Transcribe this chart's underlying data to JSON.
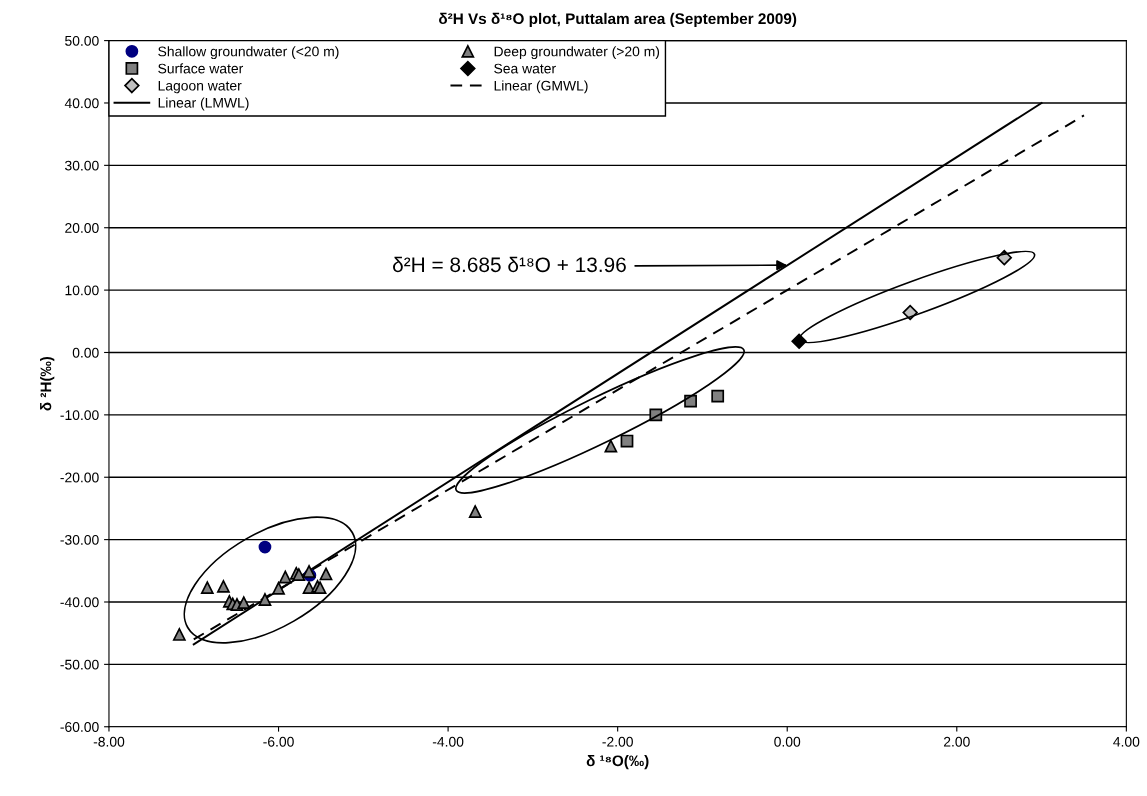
{
  "chart_data": {
    "type": "scatter",
    "title": "δ²H Vs δ¹⁸O plot, Puttalam area (September 2009)",
    "xlabel": "δ ¹⁸O(‰)",
    "ylabel": "δ ²H(‰)",
    "xlim": [
      -8,
      4
    ],
    "ylim": [
      -60,
      50
    ],
    "xticks": [
      {
        "value": -8,
        "label": "-8.00"
      },
      {
        "value": -6,
        "label": "-6.00"
      },
      {
        "value": -4,
        "label": "-4.00"
      },
      {
        "value": -2,
        "label": "-2.00"
      },
      {
        "value": 0,
        "label": "0.00"
      },
      {
        "value": 2,
        "label": "2.00"
      },
      {
        "value": 4,
        "label": "4.00"
      }
    ],
    "yticks": [
      {
        "value": -60,
        "label": "-60.00"
      },
      {
        "value": -50,
        "label": "-50.00"
      },
      {
        "value": -40,
        "label": "-40.00"
      },
      {
        "value": -30,
        "label": "-30.00"
      },
      {
        "value": -20,
        "label": "-20.00"
      },
      {
        "value": -10,
        "label": "-10.00"
      },
      {
        "value": 0,
        "label": "0.00"
      },
      {
        "value": 10,
        "label": "10.00"
      },
      {
        "value": 20,
        "label": "20.00"
      },
      {
        "value": 30,
        "label": "30.00"
      },
      {
        "value": 40,
        "label": "40.00"
      },
      {
        "value": 50,
        "label": "50.00"
      }
    ],
    "grid": "y",
    "legend": "top left",
    "series": [
      {
        "name": "Shallow groundwater (<20 m)",
        "marker": "circle",
        "color": "#000080",
        "x": [
          -6.16,
          -5.63
        ],
        "values": [
          -31.2,
          -35.7
        ]
      },
      {
        "name": "Deep groundwater (>20 m)",
        "marker": "triangle",
        "color": "#808080",
        "x": [
          -7.17,
          -6.84,
          -6.65,
          -6.58,
          -6.54,
          -6.49,
          -6.41,
          -6.16,
          -6.0,
          -5.92,
          -5.79,
          -5.76,
          -5.64,
          -5.64,
          -5.54,
          -5.51,
          -5.44,
          -3.68,
          -2.08
        ],
        "values": [
          -45.2,
          -37.7,
          -37.5,
          -39.9,
          -40.3,
          -40.4,
          -40.1,
          -39.6,
          -37.8,
          -36.0,
          -35.4,
          -35.6,
          -35.1,
          -37.7,
          -37.5,
          -37.7,
          -35.5,
          -25.5,
          -15.0
        ]
      },
      {
        "name": "Surface water",
        "marker": "square",
        "color": "#808080",
        "x": [
          -1.89,
          -1.55,
          -1.14,
          -0.82
        ],
        "values": [
          -14.2,
          -10.0,
          -7.8,
          -7.0
        ]
      },
      {
        "name": "Sea water",
        "marker": "diamond",
        "color": "#000000",
        "x": [
          0.14
        ],
        "values": [
          1.8
        ]
      },
      {
        "name": "Lagoon water",
        "marker": "diamond",
        "color": "#c0c0c0",
        "x": [
          1.45,
          2.56
        ],
        "values": [
          6.4,
          15.2
        ]
      },
      {
        "name": "Linear (GMWL)",
        "type": "line",
        "line_style": "dashed",
        "color": "#000000",
        "x": [
          -7.0,
          3.5
        ],
        "values": [
          -46.0,
          38.0
        ]
      },
      {
        "name": "Linear (LMWL)",
        "type": "line",
        "line_style": "solid",
        "color": "#000000",
        "x": [
          -7.0,
          3.0
        ],
        "values": [
          -46.8,
          40.0
        ]
      }
    ],
    "annotations": [
      {
        "text": "δ²H = 8.685 δ¹⁸O + 13.96",
        "x": 0.0,
        "y": 14.0
      }
    ]
  }
}
